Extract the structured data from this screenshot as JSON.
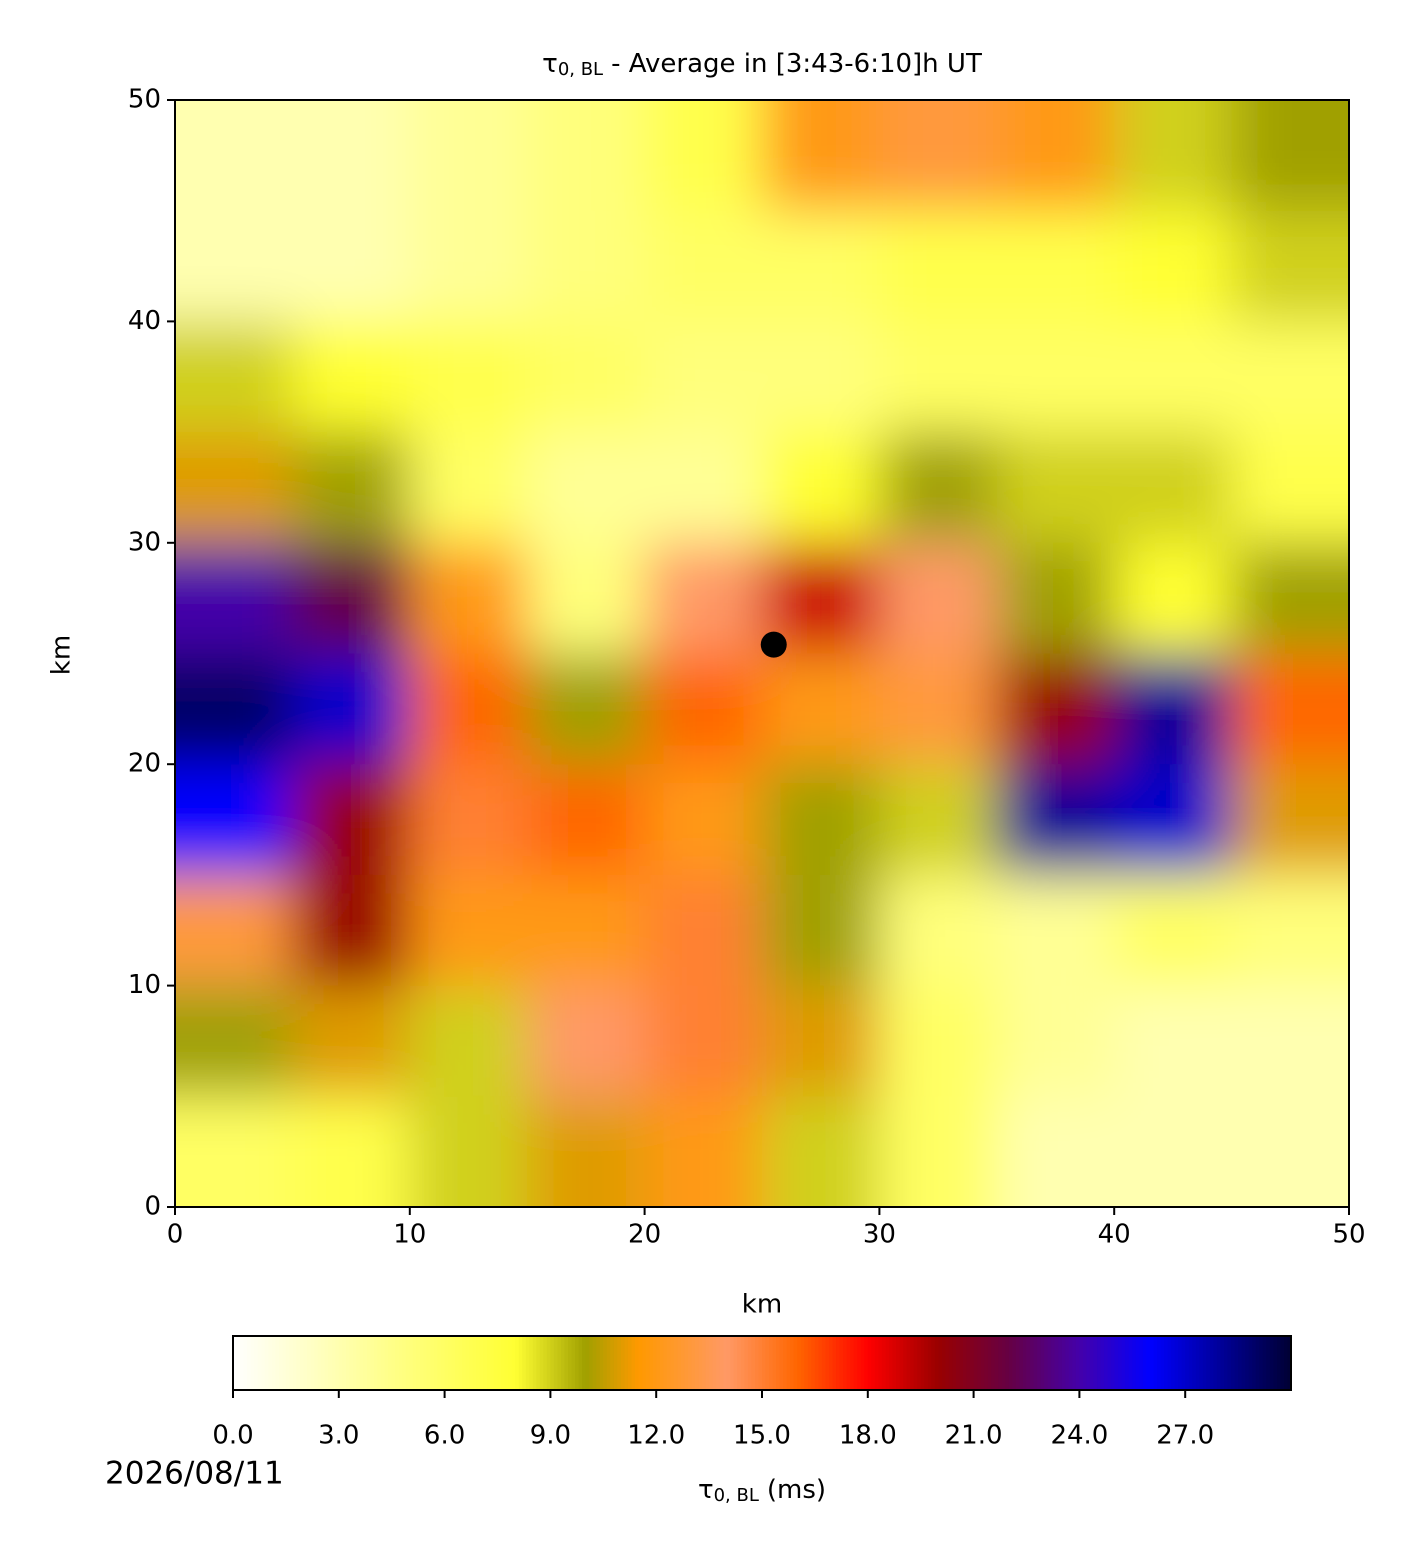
{
  "chart_data": {
    "type": "heatmap",
    "title": {
      "symbol": "τ",
      "subscript": "0, BL",
      "text": "- Average in [3:43-6:10]h UT"
    },
    "xlabel": "km",
    "ylabel": "km",
    "xlim": [
      0,
      50
    ],
    "ylim": [
      0,
      50
    ],
    "xticks": [
      0,
      10,
      20,
      30,
      40,
      50
    ],
    "yticks": [
      0,
      10,
      20,
      30,
      40,
      50
    ],
    "x": [
      2.5,
      7.5,
      12.5,
      17.5,
      22.5,
      27.5,
      32.5,
      37.5,
      42.5,
      47.5
    ],
    "y": [
      47.5,
      42.5,
      37.5,
      32.5,
      27.5,
      22.5,
      17.5,
      12.5,
      7.5,
      2.5
    ],
    "values": [
      [
        3,
        3,
        4,
        5,
        7,
        12,
        13,
        12,
        9,
        10
      ],
      [
        3,
        3,
        4,
        5,
        6,
        6,
        7,
        7,
        8,
        9
      ],
      [
        9,
        8,
        7,
        6,
        5,
        5,
        6,
        6,
        6,
        6
      ],
      [
        11,
        10,
        6,
        4,
        4,
        8,
        10,
        9,
        9,
        7
      ],
      [
        24,
        22,
        12,
        5,
        14,
        19,
        14,
        10,
        8,
        10
      ],
      [
        29,
        27,
        16,
        10,
        16,
        12,
        13,
        20,
        28,
        16
      ],
      [
        26,
        20,
        15,
        16,
        12,
        10,
        9,
        28,
        27,
        11
      ],
      [
        13,
        20,
        12,
        12,
        15,
        10,
        5,
        4,
        6,
        5
      ],
      [
        10,
        11,
        9,
        14,
        15,
        11,
        6,
        4,
        3,
        3
      ],
      [
        6,
        7,
        9,
        11,
        12,
        9,
        6,
        3,
        3,
        3
      ]
    ],
    "point": {
      "x": 25.5,
      "y": 25.4,
      "color": "#000000"
    },
    "colorbar": {
      "lim": [
        0,
        30
      ],
      "ticks": [
        {
          "value": 0,
          "label": "0.0"
        },
        {
          "value": 3,
          "label": "3.0"
        },
        {
          "value": 6,
          "label": "6.0"
        },
        {
          "value": 9,
          "label": "9.0"
        },
        {
          "value": 12,
          "label": "12.0"
        },
        {
          "value": 15,
          "label": "15.0"
        },
        {
          "value": 18,
          "label": "18.0"
        },
        {
          "value": 21,
          "label": "21.0"
        },
        {
          "value": 24,
          "label": "24.0"
        },
        {
          "value": 27,
          "label": "27.0"
        }
      ],
      "label": {
        "symbol": "τ",
        "subscript": "0, BL",
        "text": "(ms)"
      }
    },
    "colorscale": [
      {
        "value": 0,
        "color": "#ffffff"
      },
      {
        "value": 4.5,
        "color": "#ffff88"
      },
      {
        "value": 8,
        "color": "#ffff33"
      },
      {
        "value": 10,
        "color": "#a0a000"
      },
      {
        "value": 11.5,
        "color": "#ff9900"
      },
      {
        "value": 14,
        "color": "#ff9966"
      },
      {
        "value": 16,
        "color": "#ff6600"
      },
      {
        "value": 18,
        "color": "#ff0000"
      },
      {
        "value": 20,
        "color": "#990000"
      },
      {
        "value": 22,
        "color": "#660044"
      },
      {
        "value": 24,
        "color": "#4400aa"
      },
      {
        "value": 26,
        "color": "#0000ff"
      },
      {
        "value": 30,
        "color": "#000033"
      }
    ],
    "date": "2026/08/11"
  }
}
